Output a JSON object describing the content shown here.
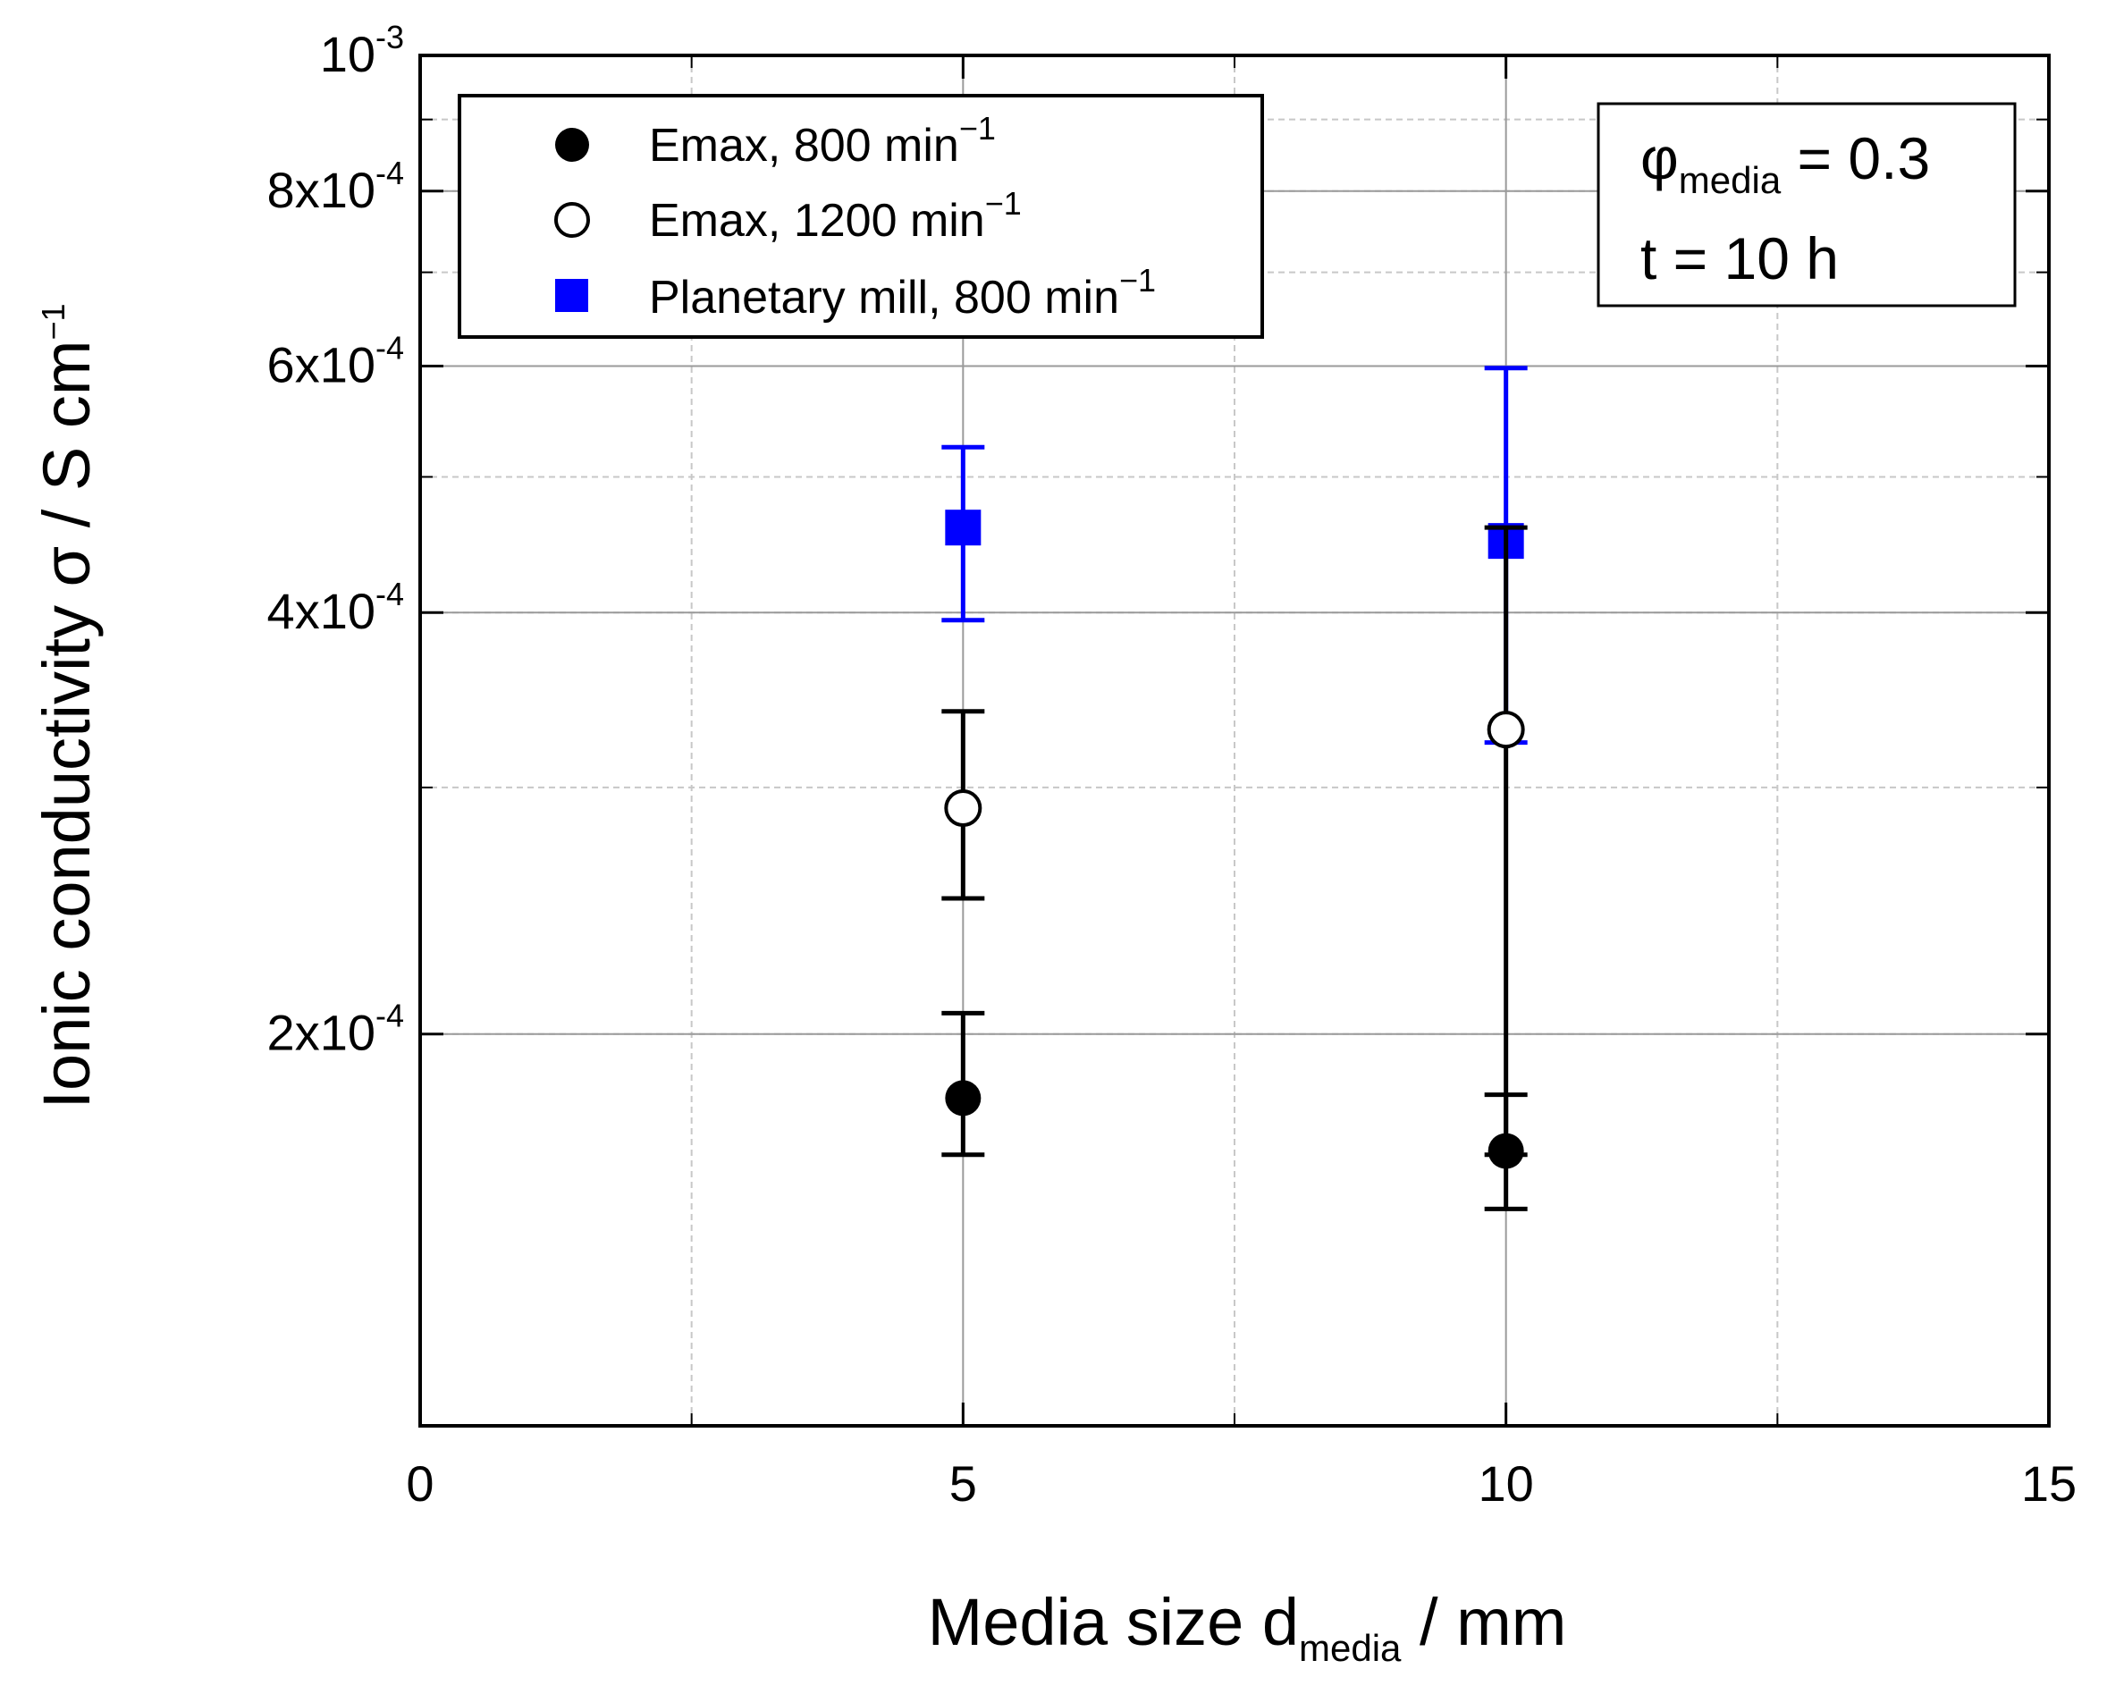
{
  "chart_data": {
    "type": "scatter",
    "title": "",
    "xlabel": {
      "main": "Media size d",
      "sub": "media",
      "unit": " / mm"
    },
    "ylabel": {
      "main": "Ionic conductivity σ / S cm",
      "sup": "−1"
    },
    "x_scale": "linear",
    "y_scale": "log",
    "xlim": [
      0,
      15
    ],
    "ylim": [
      0.000105,
      0.001
    ],
    "x_ticks": [
      {
        "value": 0,
        "label": "0"
      },
      {
        "value": 5,
        "label": "5"
      },
      {
        "value": 10,
        "label": "10"
      },
      {
        "value": 15,
        "label": "15"
      }
    ],
    "y_ticks": [
      {
        "value": 0.0002,
        "mantissa": "2x10",
        "exp": "-4"
      },
      {
        "value": 0.0004,
        "mantissa": "4x10",
        "exp": "-4"
      },
      {
        "value": 0.0006,
        "mantissa": "6x10",
        "exp": "-4"
      },
      {
        "value": 0.0008,
        "mantissa": "8x10",
        "exp": "-4"
      },
      {
        "value": 0.001,
        "mantissa": "10",
        "exp": "-3"
      }
    ],
    "grid": true,
    "legend_position": "top-left",
    "series": [
      {
        "name": "Emax, 800 min",
        "name_sup": "−1",
        "marker": "filled-circle",
        "color": "#000000",
        "points": [
          {
            "x": 5,
            "y": 0.00018,
            "y_low": 0.000164,
            "y_high": 0.000207
          },
          {
            "x": 10,
            "y": 0.000165,
            "y_low": 0.00015,
            "y_high": 0.000181
          }
        ]
      },
      {
        "name": "Emax, 1200 min",
        "name_sup": "−1",
        "marker": "open-circle",
        "color": "#000000",
        "points": [
          {
            "x": 5,
            "y": 0.00029,
            "y_low": 0.00025,
            "y_high": 0.00034
          },
          {
            "x": 10,
            "y": 0.00033,
            "y_low": 0.000164,
            "y_high": 0.00046
          }
        ]
      },
      {
        "name": "Planetary mill, 800 min",
        "name_sup": "−1",
        "marker": "filled-square",
        "color": "#0000ff",
        "points": [
          {
            "x": 5,
            "y": 0.00046,
            "y_low": 0.000395,
            "y_high": 0.000525
          },
          {
            "x": 10,
            "y": 0.00045,
            "y_low": 0.000323,
            "y_high": 0.000598
          }
        ]
      }
    ],
    "annotation": {
      "phi_symbol": "φ",
      "phi_sub": "media",
      "phi_value": " = 0.3",
      "time_text": "t = 10 h"
    }
  }
}
